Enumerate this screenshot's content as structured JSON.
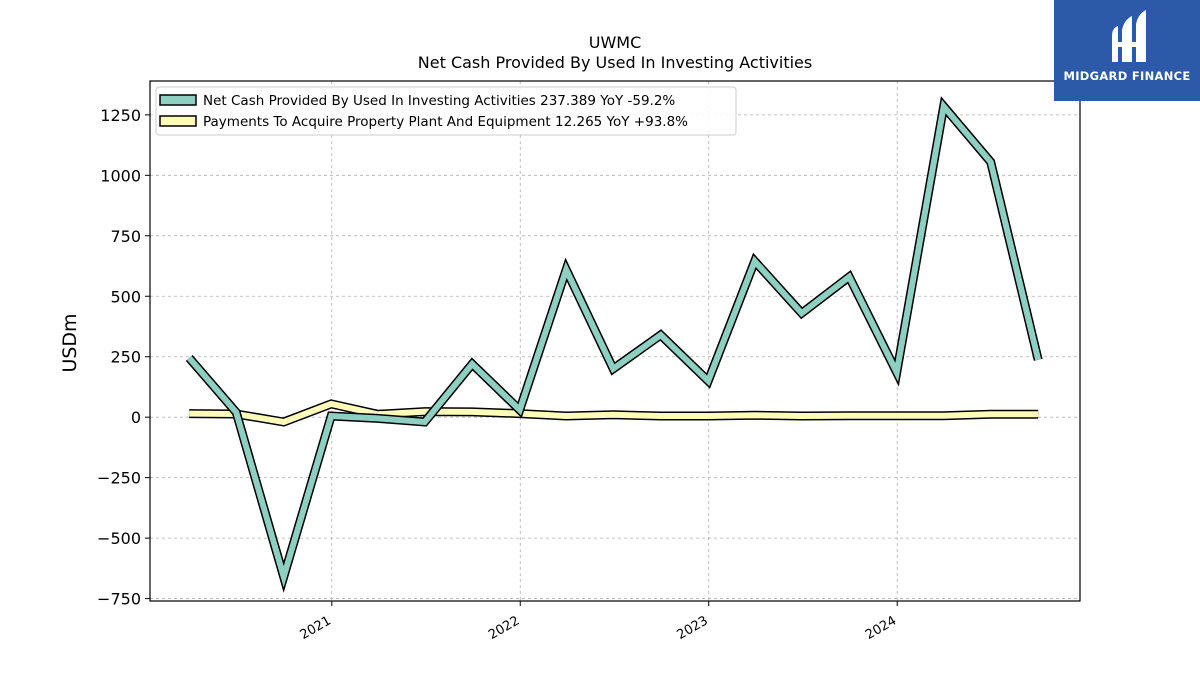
{
  "chart_data": {
    "type": "line",
    "title": "UWMC",
    "subtitle": "Net Cash Provided By Used In Investing Activities",
    "ylabel": "USDm",
    "xlabel": "",
    "ylim": [
      -760,
      1390
    ],
    "xlim": [
      "2020-01-15",
      "2024-12-20"
    ],
    "yticks": [
      -750,
      -500,
      -250,
      0,
      250,
      500,
      750,
      1000,
      1250
    ],
    "xticks": [
      "2021-01-01",
      "2022-01-01",
      "2023-01-01",
      "2024-01-01"
    ],
    "xtick_labels": [
      "2021",
      "2022",
      "2023",
      "2024"
    ],
    "grid": true,
    "legend_position": "top-left",
    "x": [
      "2020-03-31",
      "2020-06-30",
      "2020-09-30",
      "2020-12-31",
      "2021-03-31",
      "2021-06-30",
      "2021-09-30",
      "2021-12-31",
      "2022-03-31",
      "2022-06-30",
      "2022-09-30",
      "2022-12-31",
      "2023-03-31",
      "2023-06-30",
      "2023-09-30",
      "2023-12-31",
      "2024-03-31",
      "2024-06-30",
      "2024-09-30"
    ],
    "series": [
      {
        "name": "Net Cash Provided By Used In Investing Activities",
        "legend_label": "Net Cash Provided By Used In Investing Activities  237.389 YoY -59.2%",
        "color": "#8dcfc1",
        "values": [
          245,
          20,
          -660,
          5,
          -5,
          -20,
          220,
          30,
          610,
          200,
          340,
          150,
          645,
          430,
          580,
          185,
          1285,
          1055,
          237.389
        ]
      },
      {
        "name": "Payments To Acquire Property Plant And Equipment",
        "legend_label": "Payments To Acquire Property Plant And Equipment  12.265 YoY +93.8%",
        "color": "#fdfbb8",
        "values": [
          15,
          13,
          -20,
          55,
          12,
          23,
          22,
          15,
          5,
          10,
          5,
          5,
          8,
          5,
          6,
          6,
          6,
          12,
          12.265
        ]
      }
    ]
  },
  "logo": {
    "text": "MIDGARD FINANCE",
    "background": "#2d5aa8"
  }
}
